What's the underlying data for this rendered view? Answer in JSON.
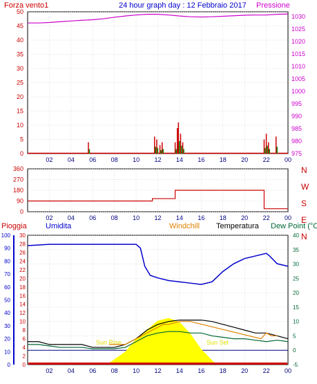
{
  "header": {
    "left_label": "Forza vento1",
    "title": "24 hour graph day : 12 Febbraio 2017",
    "right_label": "Pressione"
  },
  "colors": {
    "wind": "#cc0000",
    "gust": "#008800",
    "pressure": "#cc00cc",
    "direction": "#cc0000",
    "humidity": "#0000cc",
    "temperature": "#000000",
    "dewpoint": "#006633",
    "windchill": "#e08000",
    "rain": "#cc0000",
    "sun": "#ffff00",
    "grid": "#c0c0c0"
  },
  "hour_ticks": [
    "02",
    "04",
    "06",
    "08",
    "10",
    "12",
    "14",
    "16",
    "18",
    "20",
    "22",
    "00"
  ],
  "panels": {
    "wind": {
      "y_ticks_left": [
        "0",
        "5",
        "10",
        "15",
        "20",
        "25",
        "30",
        "35",
        "40",
        "45",
        "50"
      ],
      "y_ticks_right": [
        "975",
        "980",
        "985",
        "990",
        "995",
        "1000",
        "1005",
        "1010",
        "1015",
        "1020",
        "1025",
        "1030"
      ]
    },
    "direction": {
      "y_ticks_left": [
        "0",
        "90",
        "180",
        "270",
        "360"
      ],
      "y_ticks_right": [
        "N",
        "W",
        "S",
        "E",
        "N"
      ]
    },
    "climate": {
      "labels": {
        "rain": "Pioggia",
        "humidity": "Umidita",
        "windchill": "Windchill",
        "temperature": "Temperatura",
        "dewpoint": "Dew Point (°C"
      },
      "y_ticks_humidity": [
        "0",
        "10",
        "20",
        "30",
        "40",
        "50",
        "60",
        "70",
        "80",
        "90",
        "100"
      ],
      "y_ticks_rain": [
        "0",
        "2",
        "4",
        "6",
        "8",
        "10",
        "12",
        "14",
        "16",
        "18",
        "20",
        "22",
        "24",
        "26",
        "28",
        "30"
      ],
      "y_ticks_temp": [
        "-5",
        "0",
        "5",
        "10",
        "15",
        "20",
        "25",
        "30",
        "35",
        "40"
      ],
      "sun_rise_label": "Sun Rise",
      "sun_set_label": "Sun Set"
    }
  },
  "chart_data": [
    {
      "type": "line",
      "title": "24 hour graph day : 12 Febbraio 2017",
      "x_label": "hour",
      "series": [
        {
          "name": "Forza vento1",
          "unit": "wind",
          "x": [
            5.6,
            5.6,
            11.7,
            11.9,
            12.2,
            12.4,
            13.6,
            13.8,
            13.9,
            14.1,
            14.3,
            21.8,
            22.0,
            22.2,
            22.9
          ],
          "values": [
            4,
            0,
            6,
            5,
            3,
            4,
            4,
            9,
            11,
            7,
            4,
            5,
            7,
            4,
            6
          ]
        },
        {
          "name": "Pressione",
          "unit": "hPa",
          "x": [
            0,
            1,
            2,
            3,
            4,
            5,
            6,
            7,
            8,
            9,
            10,
            11,
            12,
            13,
            14,
            15,
            16,
            17,
            18,
            19,
            20,
            21,
            22,
            23,
            24
          ],
          "values": [
            1027.5,
            1027.5,
            1027.7,
            1028.0,
            1028.3,
            1028.6,
            1028.8,
            1029.2,
            1029.8,
            1030.3,
            1030.7,
            1031.0,
            1031.0,
            1030.7,
            1030.3,
            1030.0,
            1029.9,
            1030.0,
            1030.2,
            1030.4,
            1030.6,
            1030.7,
            1030.7,
            1031.0,
            1031.1
          ]
        }
      ],
      "ylim_left": [
        0,
        50
      ],
      "ylim_right": [
        975,
        1032
      ]
    },
    {
      "type": "line",
      "title": "",
      "series": [
        {
          "name": "Direction",
          "x": [
            0,
            11.5,
            11.5,
            13.6,
            13.6,
            21.8,
            21.8,
            24
          ],
          "values": [
            90,
            90,
            110,
            110,
            180,
            180,
            25,
            25
          ]
        }
      ],
      "ylim": [
        0,
        360
      ]
    },
    {
      "type": "line",
      "series": [
        {
          "name": "Umidita",
          "x": [
            0,
            2,
            4,
            6,
            8,
            10,
            10.4,
            10.8,
            11.3,
            12,
            13,
            14,
            15,
            16,
            17,
            18,
            19,
            20,
            21,
            22,
            22.3,
            23,
            24
          ],
          "values": [
            92,
            93,
            93,
            93,
            93,
            93,
            90,
            76,
            69,
            67,
            65,
            64,
            63,
            62,
            64,
            72,
            78,
            82,
            84,
            86,
            84,
            78,
            76
          ]
        },
        {
          "name": "Temperatura",
          "x": [
            0,
            1,
            2,
            3,
            4,
            5,
            6,
            7,
            8,
            9,
            10,
            11,
            12,
            13,
            14,
            15,
            16,
            17,
            18,
            19,
            20,
            21,
            22,
            23,
            24
          ],
          "values": [
            3,
            3,
            2,
            2,
            2,
            2,
            1,
            1,
            1,
            2,
            4,
            7,
            9,
            10,
            10.5,
            10.5,
            10.5,
            10,
            9,
            8,
            7,
            6,
            6,
            5,
            4
          ]
        },
        {
          "name": "Dew Point",
          "x": [
            0,
            1,
            2,
            3,
            4,
            5,
            6,
            7,
            8,
            9,
            10,
            11,
            12,
            13,
            14,
            15,
            16,
            17,
            18,
            19,
            20,
            21,
            22,
            23,
            24
          ],
          "values": [
            2,
            2,
            1.5,
            1,
            1,
            1,
            0.5,
            0.5,
            0.5,
            1,
            3,
            5,
            6,
            6.5,
            6.5,
            6,
            6,
            5,
            4.5,
            4,
            4,
            3.5,
            3,
            3.5,
            3
          ]
        },
        {
          "name": "Windchill",
          "x": [
            7.5,
            9,
            10,
            11,
            12,
            12.5,
            13,
            14,
            15,
            21.5,
            22,
            22.5,
            23
          ],
          "values": [
            2,
            2,
            4,
            6,
            8,
            9,
            9,
            10,
            10,
            4,
            6,
            5,
            5
          ]
        },
        {
          "name": "Pioggia",
          "x": [
            0,
            24
          ],
          "values": [
            0,
            0
          ]
        }
      ],
      "sun_curve": {
        "x": [
          7.3,
          9,
          10,
          11,
          12,
          13,
          14,
          15,
          16,
          17.4
        ],
        "values": [
          0,
          10,
          20,
          27,
          34,
          36,
          33,
          24,
          12,
          0
        ]
      },
      "ylim_humidity": [
        0,
        100
      ],
      "ylim_rain": [
        0,
        30
      ],
      "ylim_temp": [
        -5,
        40
      ]
    }
  ]
}
